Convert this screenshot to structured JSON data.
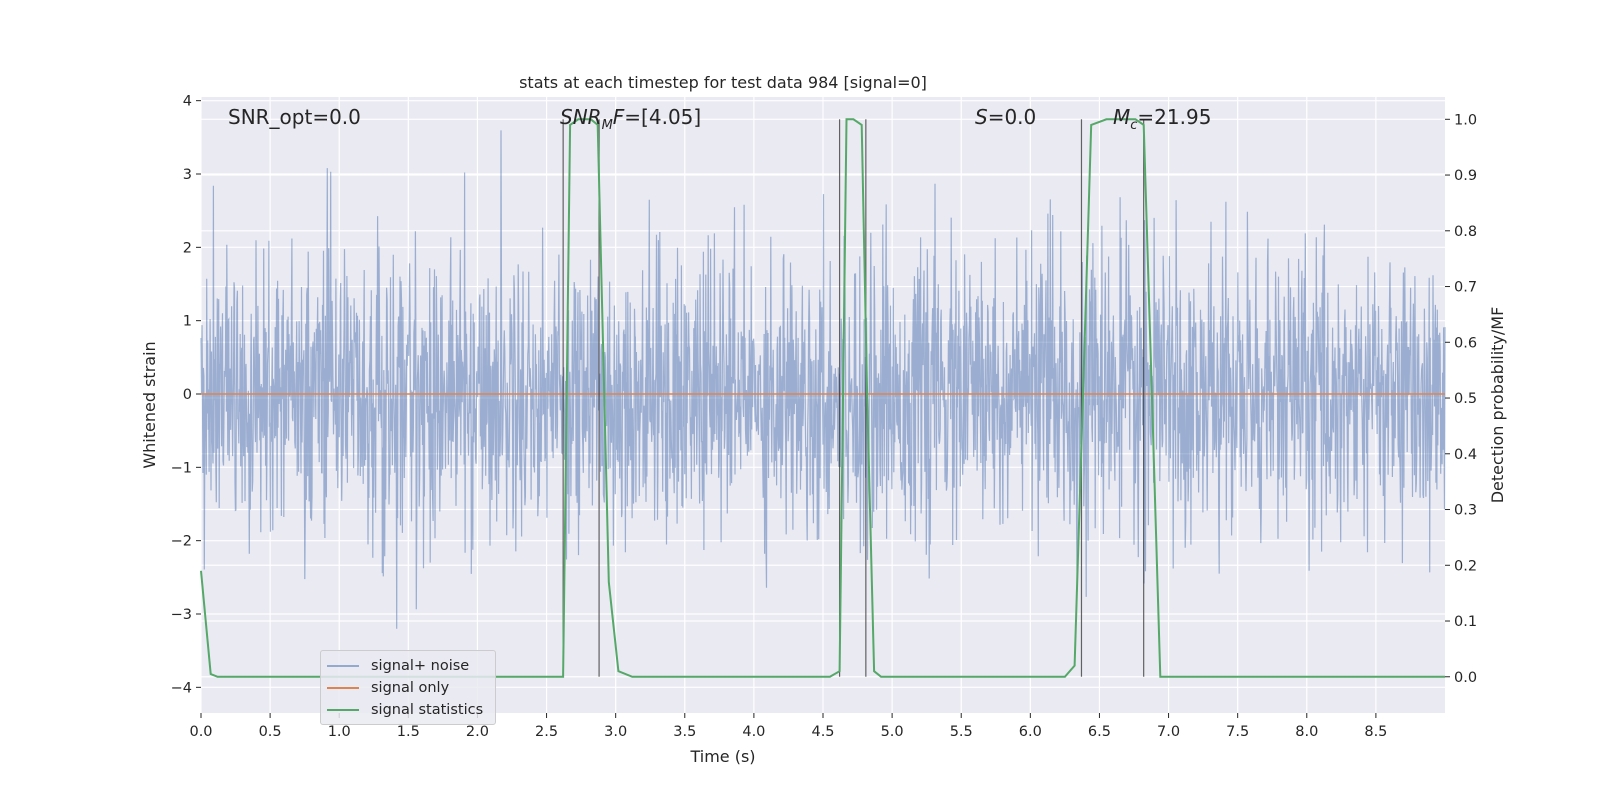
{
  "chart_data": {
    "type": "line",
    "title": "stats at each timestep for test data 984 [signal=0]",
    "xlabel": "Time (s)",
    "ylabel_left": "Whitened strain",
    "ylabel_right": "Detection probability/MF",
    "xlim": [
      0.0,
      9.0
    ],
    "ylim_left": [
      -4.35,
      4.05
    ],
    "ylim_right": [
      -0.065,
      1.04
    ],
    "x_ticks": [
      "0.0",
      "0.5",
      "1.0",
      "1.5",
      "2.0",
      "2.5",
      "3.0",
      "3.5",
      "4.0",
      "4.5",
      "5.0",
      "5.5",
      "6.0",
      "6.5",
      "7.0",
      "7.5",
      "8.0",
      "8.5"
    ],
    "y_ticks_left": [
      "4",
      "3",
      "2",
      "1",
      "0",
      "−1",
      "−2",
      "−3",
      "−4"
    ],
    "y_ticks_right": [
      "1.0",
      "0.9",
      "0.8",
      "0.7",
      "0.6",
      "0.5",
      "0.4",
      "0.3",
      "0.2",
      "0.1",
      "0.0"
    ],
    "grid": true,
    "legend_position": "lower-left",
    "annotations": [
      {
        "text": "SNR_opt=0.0",
        "x": 0.2
      },
      {
        "text": "SNR_MF=[4.05]",
        "x": 2.6
      },
      {
        "text": "S=0.0",
        "x": 5.6
      },
      {
        "text": "M_c=21.95",
        "x": 6.6
      }
    ],
    "series": [
      {
        "name": "signal+ noise",
        "color": "#4c72b0",
        "alpha": 0.5,
        "noise_std": 0.95,
        "noise_max_abs": 4.0,
        "duration_s": 9.0
      },
      {
        "name": "signal only",
        "color": "#dd8452",
        "values": "constant 0"
      },
      {
        "name": "signal statistics",
        "color": "#55a868",
        "x": [
          0.0,
          0.07,
          0.12,
          2.62,
          2.67,
          2.73,
          2.82,
          2.87,
          2.95,
          3.02,
          3.12,
          4.55,
          4.62,
          4.67,
          4.72,
          4.78,
          4.82,
          4.87,
          4.92,
          6.25,
          6.32,
          6.38,
          6.44,
          6.55,
          6.62,
          6.76,
          6.82,
          6.88,
          6.94,
          7.05,
          9.0
        ],
        "values": [
          0.19,
          0.005,
          0.0,
          0.0,
          0.99,
          1.0,
          1.0,
          0.99,
          0.17,
          0.01,
          0.0,
          0.0,
          0.01,
          1.0,
          1.0,
          0.99,
          0.5,
          0.01,
          0.0,
          0.0,
          0.02,
          0.5,
          0.99,
          1.0,
          1.0,
          1.0,
          0.99,
          0.5,
          0.0,
          0.0,
          0.0
        ]
      }
    ],
    "marker_lines_x": [
      2.62,
      2.88,
      4.62,
      4.81,
      6.37,
      6.82
    ]
  },
  "legend": {
    "items": [
      {
        "label": "signal+ noise",
        "color": "#4c72b0"
      },
      {
        "label": "signal only",
        "color": "#dd8452"
      },
      {
        "label": "signal statistics",
        "color": "#55a868"
      }
    ]
  },
  "colors": {
    "axes_bg": "#eaeaf2",
    "grid": "#ffffff",
    "marker_line": "#333333"
  }
}
